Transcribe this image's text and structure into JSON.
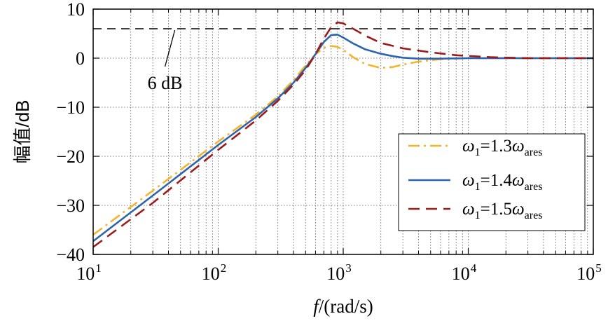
{
  "chart_data": {
    "type": "line",
    "xscale": "log",
    "xlim": [
      10,
      100000
    ],
    "ylim": [
      -40,
      10
    ],
    "grid": true,
    "xlabel": {
      "italic": "f",
      "rest": "/(rad/s)"
    },
    "ylabel": "幅值/dB",
    "x_ticks": [
      {
        "value": 10,
        "base": "10",
        "exp": "1"
      },
      {
        "value": 100,
        "base": "10",
        "exp": "2"
      },
      {
        "value": 1000,
        "base": "10",
        "exp": "3"
      },
      {
        "value": 10000,
        "base": "10",
        "exp": "4"
      },
      {
        "value": 100000,
        "base": "10",
        "exp": "5"
      }
    ],
    "y_ticks": [
      {
        "value": 10,
        "label": "10"
      },
      {
        "value": 0,
        "label": "0"
      },
      {
        "value": -10,
        "label": "−10"
      },
      {
        "value": -20,
        "label": "−20"
      },
      {
        "value": -30,
        "label": "−30"
      },
      {
        "value": -40,
        "label": "−40"
      }
    ],
    "reference_line": {
      "value": 6,
      "label": "6 dB",
      "color": "#000000",
      "label_anchor_x": 45,
      "label_value": -4
    },
    "legend_position": "lower-right",
    "series": [
      {
        "name": "w13",
        "legend": {
          "sym": "ω",
          "sub1": "1",
          "eq": "=1.3",
          "sym2": "ω",
          "sub2": "ares"
        },
        "color": "#F1B52C",
        "style": "dashdot",
        "points": [
          [
            10,
            -36
          ],
          [
            30,
            -27
          ],
          [
            100,
            -17
          ],
          [
            200,
            -11.5
          ],
          [
            300,
            -7.8
          ],
          [
            400,
            -4.5
          ],
          [
            500,
            -1.5
          ],
          [
            600,
            0.8
          ],
          [
            700,
            2.1
          ],
          [
            800,
            2.5
          ],
          [
            900,
            2.3
          ],
          [
            1000,
            1.7
          ],
          [
            1200,
            0.2
          ],
          [
            1500,
            -1.2
          ],
          [
            2000,
            -2
          ],
          [
            2500,
            -1.8
          ],
          [
            3000,
            -1.3
          ],
          [
            4000,
            -0.7
          ],
          [
            6000,
            -0.2
          ],
          [
            10000,
            0
          ],
          [
            100000,
            0
          ]
        ]
      },
      {
        "name": "w14",
        "legend": {
          "sym": "ω",
          "sub1": "1",
          "eq": "=1.4",
          "sym2": "ω",
          "sub2": "ares"
        },
        "color": "#2E64AE",
        "style": "solid",
        "points": [
          [
            10,
            -37.3
          ],
          [
            30,
            -28
          ],
          [
            100,
            -17.7
          ],
          [
            200,
            -12
          ],
          [
            300,
            -8.2
          ],
          [
            400,
            -5
          ],
          [
            500,
            -2
          ],
          [
            600,
            0.8
          ],
          [
            700,
            3.3
          ],
          [
            800,
            4.7
          ],
          [
            900,
            4.8
          ],
          [
            1000,
            4.2
          ],
          [
            1200,
            3
          ],
          [
            1500,
            1.8
          ],
          [
            2000,
            0.9
          ],
          [
            2500,
            0.4
          ],
          [
            3000,
            0.1
          ],
          [
            4000,
            -0.1
          ],
          [
            6000,
            -0.1
          ],
          [
            10000,
            0
          ],
          [
            100000,
            0
          ]
        ]
      },
      {
        "name": "w15",
        "legend": {
          "sym": "ω",
          "sub1": "1",
          "eq": "=1.5",
          "sym2": "ω",
          "sub2": "ares"
        },
        "color": "#9B1B1B",
        "style": "dashed",
        "points": [
          [
            10,
            -38.5
          ],
          [
            30,
            -29.5
          ],
          [
            100,
            -18.7
          ],
          [
            200,
            -12.7
          ],
          [
            300,
            -8.7
          ],
          [
            400,
            -5.4
          ],
          [
            500,
            -2.4
          ],
          [
            600,
            0.8
          ],
          [
            700,
            4
          ],
          [
            800,
            6.3
          ],
          [
            900,
            7.3
          ],
          [
            1000,
            7.1
          ],
          [
            1200,
            6
          ],
          [
            1500,
            4.6
          ],
          [
            2000,
            3.1
          ],
          [
            3000,
            2
          ],
          [
            5000,
            1.2
          ],
          [
            8000,
            0.6
          ],
          [
            15000,
            0.2
          ],
          [
            30000,
            0
          ],
          [
            100000,
            0
          ]
        ]
      }
    ]
  }
}
